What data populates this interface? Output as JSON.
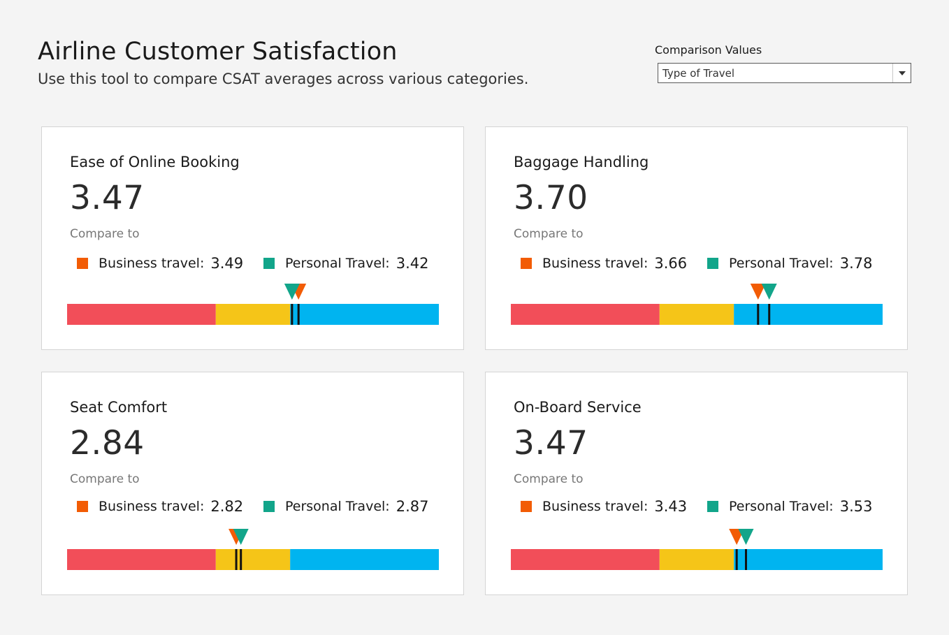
{
  "header": {
    "title": "Airline Customer Satisfaction",
    "subtitle": "Use this tool to compare CSAT averages across various categories."
  },
  "comparison": {
    "label": "Comparison Values",
    "selected": "Type of Travel"
  },
  "colors": {
    "business": "#f25c05",
    "personal": "#12a58a",
    "band_low": "#f24e59",
    "band_mid": "#f5c518",
    "band_high": "#00b4f0",
    "marker_line": "#111111"
  },
  "cards": [
    {
      "title": "Ease of Online Booking",
      "value": "3.47",
      "compare_label": "Compare to",
      "business": {
        "label": "Business travel:",
        "value": "3.49"
      },
      "personal": {
        "label": "Personal Travel:",
        "value": "3.42"
      }
    },
    {
      "title": "Baggage Handling",
      "value": "3.70",
      "compare_label": "Compare to",
      "business": {
        "label": "Business travel:",
        "value": "3.66"
      },
      "personal": {
        "label": "Personal Travel:",
        "value": "3.78"
      }
    },
    {
      "title": "Seat Comfort",
      "value": "2.84",
      "compare_label": "Compare to",
      "business": {
        "label": "Business travel:",
        "value": "2.82"
      },
      "personal": {
        "label": "Personal Travel:",
        "value": "2.87"
      }
    },
    {
      "title": "On-Board Service",
      "value": "3.47",
      "compare_label": "Compare to",
      "business": {
        "label": "Business travel:",
        "value": "3.43"
      },
      "personal": {
        "label": "Personal Travel:",
        "value": "3.53"
      }
    }
  ],
  "bar_scale": {
    "min": 1,
    "max": 5,
    "bands": [
      {
        "name": "low",
        "to": 2.6
      },
      {
        "name": "mid",
        "to": 3.4
      },
      {
        "name": "high",
        "to": 5
      }
    ]
  }
}
